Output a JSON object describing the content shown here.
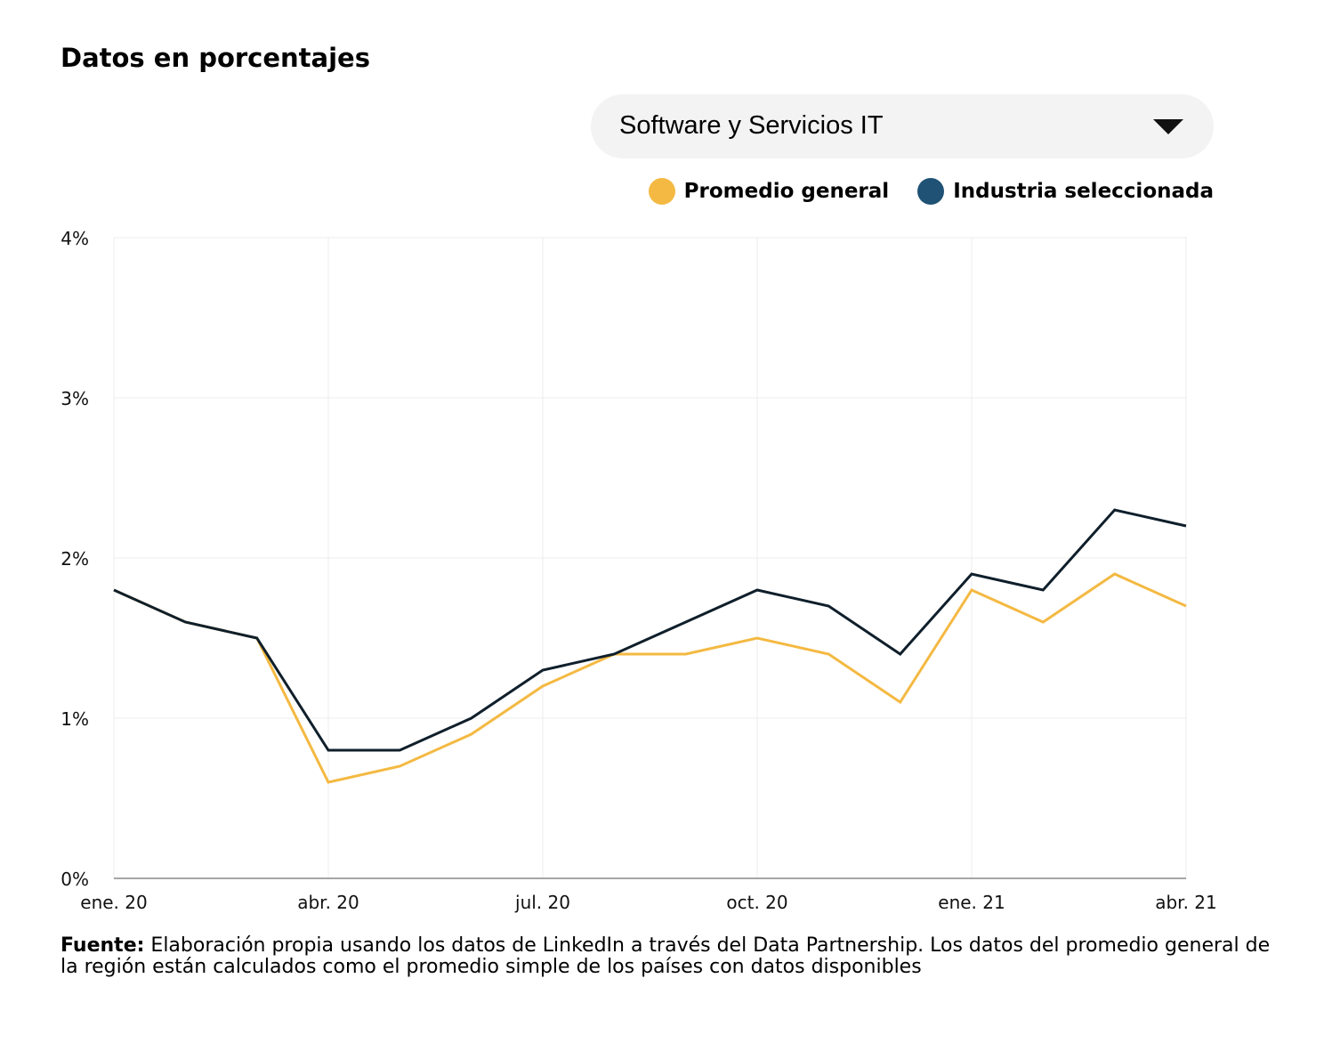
{
  "header": {
    "title": "Datos en porcentajes"
  },
  "dropdown": {
    "selected": "Software y Servicios IT"
  },
  "legend": [
    {
      "label": "Promedio general",
      "color": "#f4b942"
    },
    {
      "label": "Industria seleccionada",
      "color": "#1f5275"
    }
  ],
  "source": {
    "label": "Fuente:",
    "text": " Elaboración propia usando los datos de LinkedIn a través del Data Partnership. Los datos del promedio general de la región están calculados como el promedio simple de los países con datos disponibles"
  },
  "chart_data": {
    "type": "line",
    "x": [
      "2020-01",
      "2020-02",
      "2020-03",
      "2020-04",
      "2020-05",
      "2020-06",
      "2020-07",
      "2020-08",
      "2020-09",
      "2020-10",
      "2020-11",
      "2020-12",
      "2021-01",
      "2021-02",
      "2021-03",
      "2021-04"
    ],
    "x_tick_labels": [
      "ene. 20",
      "abr. 20",
      "jul. 20",
      "oct. 20",
      "ene. 21",
      "abr. 21"
    ],
    "y_tick_labels": [
      "0%",
      "1%",
      "2%",
      "3%",
      "4%"
    ],
    "ylim": [
      0,
      4
    ],
    "grid": true,
    "series": [
      {
        "name": "Promedio general",
        "color": "#f4b942",
        "values": [
          1.8,
          1.6,
          1.5,
          0.6,
          0.7,
          0.9,
          1.2,
          1.4,
          1.4,
          1.5,
          1.4,
          1.1,
          1.8,
          1.6,
          1.9,
          1.7
        ]
      },
      {
        "name": "Industria seleccionada",
        "color": "#0f1f2b",
        "values": [
          1.8,
          1.6,
          1.5,
          0.8,
          0.8,
          1.0,
          1.3,
          1.4,
          1.6,
          1.8,
          1.7,
          1.4,
          1.9,
          1.8,
          2.3,
          2.2
        ]
      }
    ]
  }
}
